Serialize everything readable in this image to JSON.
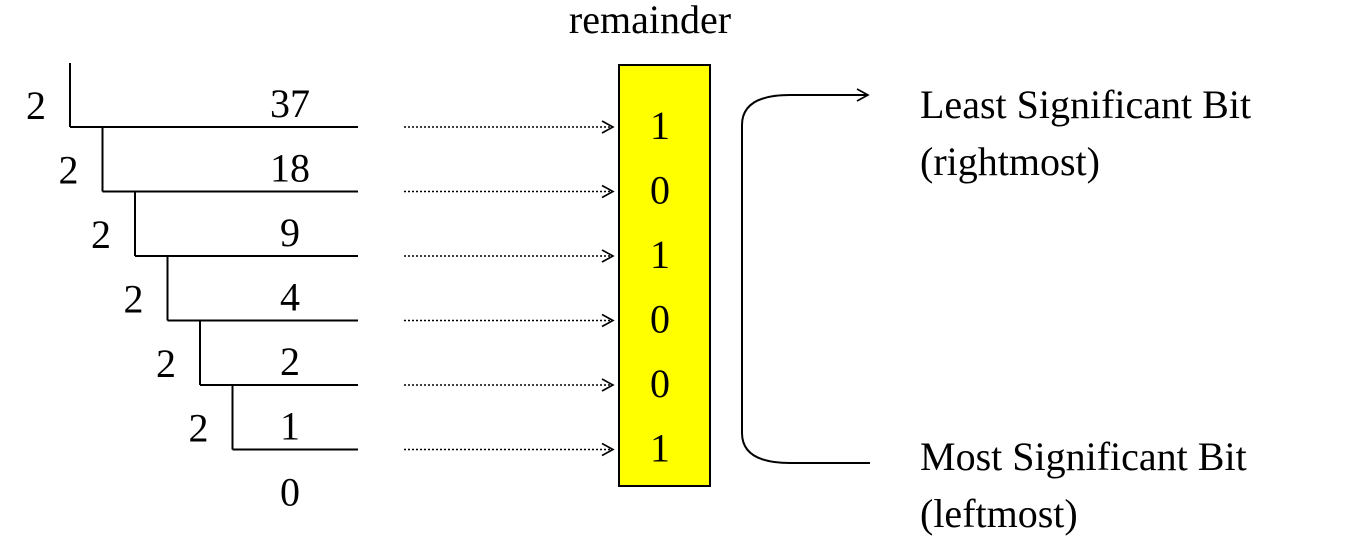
{
  "header": {
    "remainder_label": "remainder"
  },
  "division": {
    "divisor": "2",
    "dividends": [
      "37",
      "18",
      "9",
      "4",
      "2",
      "1"
    ],
    "final_quotient": "0"
  },
  "remainders": [
    "1",
    "0",
    "1",
    "0",
    "0",
    "1"
  ],
  "annotations": {
    "lsb_title": "Least Significant Bit",
    "lsb_note": "(rightmost)",
    "msb_title": "Most Significant Bit",
    "msb_note": "(leftmost)"
  },
  "colors": {
    "remainder_box": "#ffff00",
    "ink": "#000000"
  }
}
